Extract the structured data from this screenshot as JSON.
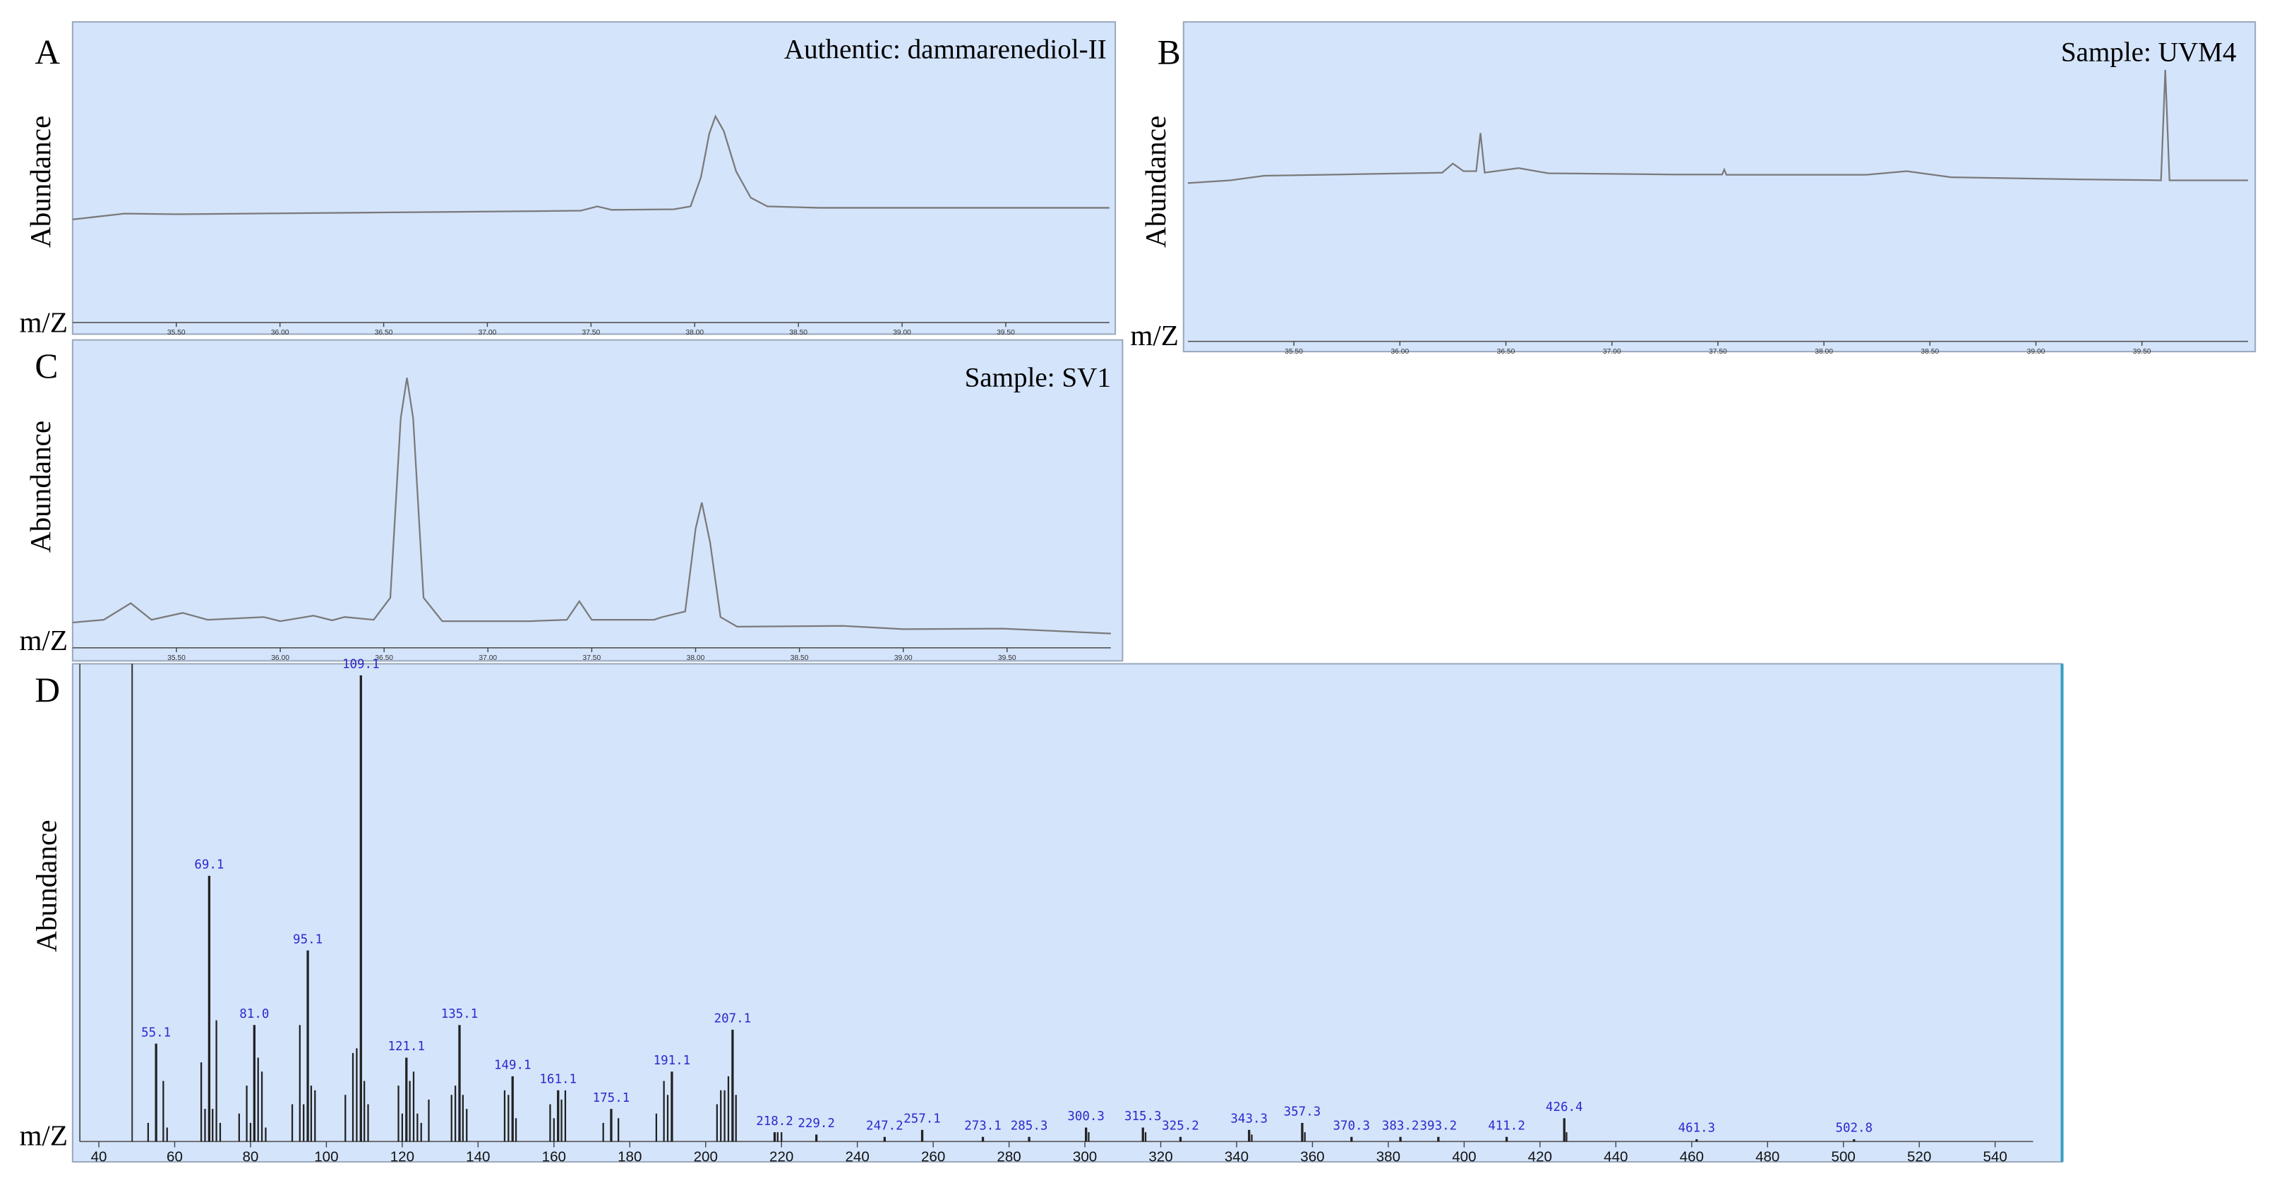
{
  "chart_data": [
    {
      "type": "line",
      "panel_label": "A",
      "title": "Authentic: dammarenediol-II",
      "ylabel": "Abundance",
      "xlabel": "m/Z",
      "color": "#7a7a7a",
      "xlim": [
        35,
        40
      ],
      "ylim": [
        0,
        100
      ],
      "xticks": [
        {
          "value": 35.5,
          "label": "35.50"
        },
        {
          "value": 36,
          "label": "36.00"
        },
        {
          "value": 36.5,
          "label": "36.50"
        },
        {
          "value": 37,
          "label": "37.00"
        },
        {
          "value": 37.5,
          "label": "37.50"
        },
        {
          "value": 38,
          "label": "38.00"
        },
        {
          "value": 38.5,
          "label": "38.50"
        },
        {
          "value": 39,
          "label": "39.00"
        },
        {
          "value": 39.5,
          "label": "39.50"
        }
      ],
      "x": [
        35,
        35.25,
        35.5,
        36,
        36.5,
        37,
        37.45,
        37.53,
        37.6,
        37.9,
        37.98,
        38.03,
        38.07,
        38.1,
        38.14,
        38.2,
        38.27,
        38.35,
        38.6,
        39,
        39.5,
        40
      ],
      "values": [
        33.5,
        35.5,
        35.3,
        35.6,
        35.9,
        36.2,
        36.5,
        38,
        36.8,
        37,
        38,
        48,
        63,
        69,
        64,
        50,
        41,
        38,
        37.5,
        37.5,
        37.5,
        37.5
      ]
    },
    {
      "type": "line",
      "panel_label": "B",
      "title": "Sample: UVM4",
      "ylabel": "Abundance",
      "xlabel": "m/Z",
      "color": "#7a7a7a",
      "xlim": [
        35,
        40
      ],
      "ylim": [
        0,
        100
      ],
      "xticks": [
        {
          "value": 35.5,
          "label": "35.50"
        },
        {
          "value": 36,
          "label": "36.00"
        },
        {
          "value": 36.5,
          "label": "36.50"
        },
        {
          "value": 37,
          "label": "37.00"
        },
        {
          "value": 37.5,
          "label": "37.50"
        },
        {
          "value": 38,
          "label": "38.00"
        },
        {
          "value": 38.5,
          "label": "38.50"
        },
        {
          "value": 39,
          "label": "39.00"
        },
        {
          "value": 39.5,
          "label": "39.50"
        }
      ],
      "x": [
        35,
        35.2,
        35.36,
        35.8,
        36.2,
        36.25,
        36.3,
        36.36,
        36.38,
        36.4,
        36.56,
        36.7,
        37.29,
        37.52,
        37.53,
        37.54,
        38.2,
        38.39,
        38.6,
        39.2,
        39.59,
        39.61,
        39.63,
        40
      ],
      "values": [
        48.6,
        49.5,
        51,
        51.5,
        52,
        55,
        52.5,
        52.5,
        65,
        52,
        53.5,
        51.8,
        51.4,
        51.4,
        53,
        51.3,
        51.3,
        52.5,
        50.5,
        49.8,
        49.5,
        85.7,
        49.5,
        49.5
      ]
    },
    {
      "type": "line",
      "panel_label": "C",
      "title": "Sample: SV1",
      "ylabel": "Abundance",
      "xlabel": "m/Z",
      "color": "#7a7a7a",
      "xlim": [
        35,
        40
      ],
      "ylim": [
        0,
        100
      ],
      "xticks": [
        {
          "value": 35.5,
          "label": "35.50"
        },
        {
          "value": 36,
          "label": "36.00"
        },
        {
          "value": 36.5,
          "label": "36.50"
        },
        {
          "value": 37,
          "label": "37.00"
        },
        {
          "value": 37.5,
          "label": "37.50"
        },
        {
          "value": 38,
          "label": "38.00"
        },
        {
          "value": 38.5,
          "label": "38.50"
        },
        {
          "value": 39,
          "label": "39.00"
        },
        {
          "value": 39.5,
          "label": "39.50"
        }
      ],
      "x": [
        35,
        35.15,
        35.28,
        35.38,
        35.53,
        35.65,
        35.92,
        36,
        36.16,
        36.25,
        36.31,
        36.45,
        36.53,
        36.58,
        36.61,
        36.64,
        36.69,
        36.78,
        37.2,
        37.38,
        37.44,
        37.5,
        37.8,
        37.84,
        37.95,
        38,
        38.03,
        38.07,
        38.12,
        38.2,
        38.71,
        39,
        39.48,
        40
      ],
      "values": [
        6,
        7,
        13,
        7,
        9.5,
        7,
        8,
        6.5,
        8.5,
        6.8,
        8,
        7,
        15,
        80,
        94.7,
        80,
        15,
        6.5,
        6.5,
        7,
        13.7,
        7,
        7,
        8,
        10,
        40,
        49.5,
        35,
        8,
        4.5,
        4.8,
        3.6,
        3.8,
        2
      ]
    },
    {
      "type": "bar",
      "panel_label": "D",
      "ylabel": "Abundance",
      "xlabel": "m/Z",
      "color": "#222222",
      "label_color": "#2a2acc",
      "xlim": [
        35,
        550
      ],
      "ylim": [
        0,
        100
      ],
      "xticks": [
        40,
        60,
        80,
        100,
        120,
        140,
        160,
        180,
        200,
        220,
        240,
        260,
        280,
        300,
        320,
        340,
        360,
        380,
        400,
        420,
        440,
        460,
        480,
        500,
        520,
        540
      ],
      "peaks": {
        "x": [
          55.1,
          69.1,
          81,
          95.1,
          109.1,
          121.1,
          135.1,
          149.1,
          161.1,
          175.1,
          191.1,
          207.1,
          218.2,
          229.2,
          247.2,
          257.1,
          273.1,
          285.3,
          300.3,
          315.3,
          325.2,
          343.3,
          357.3,
          370.3,
          383.2,
          393.2,
          411.2,
          426.4,
          461.3,
          502.8
        ],
        "values": [
          21,
          57,
          25,
          41,
          100,
          18,
          25,
          14,
          11,
          7,
          15,
          24,
          2,
          1.5,
          1,
          2.5,
          1,
          1,
          3,
          3,
          1,
          2.5,
          4,
          1,
          1,
          1,
          1,
          5,
          0.5,
          0.5
        ],
        "labels": [
          "55.1",
          "69.1",
          "81.0",
          "95.1",
          "109.1",
          "121.1",
          "135.1",
          "149.1",
          "161.1",
          "175.1",
          "191.1",
          "207.1",
          "218.2",
          "229.2",
          "247.2",
          "257.1",
          "273.1",
          "285.3",
          "300.3",
          "315.3",
          "325.2",
          "343.3",
          "357.3",
          "370.3",
          "383.2",
          "393.2",
          "411.2",
          "426.4",
          "461.3",
          "502.8"
        ]
      },
      "minor_peaks": {
        "x": [
          53,
          57,
          58,
          67,
          68,
          70,
          71,
          72,
          77,
          79,
          80,
          82,
          83,
          84,
          91,
          93,
          94,
          96,
          97,
          105,
          107,
          108,
          110,
          111,
          119,
          120,
          122,
          123,
          124,
          125,
          127,
          133,
          134,
          136,
          137,
          147,
          148,
          150,
          159,
          160,
          162,
          163,
          173,
          177,
          187,
          189,
          190,
          203,
          204,
          205,
          206,
          208,
          219,
          220,
          301,
          316,
          344,
          358,
          427
        ],
        "values": [
          4,
          13,
          3,
          17,
          7,
          7,
          26,
          4,
          6,
          12,
          4,
          18,
          15,
          3,
          8,
          25,
          8,
          12,
          11,
          10,
          19,
          20,
          13,
          8,
          12,
          6,
          13,
          15,
          6,
          4,
          9,
          10,
          12,
          10,
          7,
          11,
          10,
          5,
          8,
          5,
          9,
          11,
          4,
          5,
          6,
          13,
          10,
          8,
          11,
          11,
          14,
          10,
          2,
          2,
          2,
          2,
          1.5,
          2,
          2
        ]
      }
    }
  ]
}
